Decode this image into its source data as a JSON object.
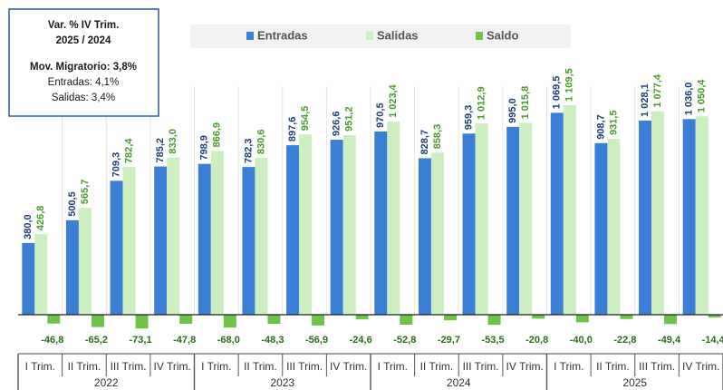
{
  "chart_data": {
    "type": "bar",
    "categories": [
      "I Trim.",
      "II Trim.",
      "III Trim.",
      "IV Trim.",
      "I Trim.",
      "II Trim.",
      "III Trim.",
      "IV Trim.",
      "I Trim.",
      "II Trim.",
      "III Trim.",
      "IV Trim.",
      "I Trim.",
      "II Trim.",
      "III Trim.",
      "IV Trim."
    ],
    "years": [
      "2022",
      "2023",
      "2024",
      "2025"
    ],
    "series": [
      {
        "name": "Entradas",
        "color": "#3a7fd5",
        "label_color": "#1f3e7a",
        "values": [
          380.0,
          500.5,
          709.3,
          785.2,
          798.9,
          782.3,
          897.6,
          926.6,
          970.5,
          828.7,
          959.3,
          995.0,
          1069.5,
          908.7,
          1028.1,
          1036.0
        ],
        "value_labels": [
          "380,0",
          "500,5",
          "709,3",
          "785,2",
          "798,9",
          "782,3",
          "897,6",
          "926,6",
          "970,5",
          "828,7",
          "959,3",
          "995,0",
          "1 069,5",
          "908,7",
          "1 028,1",
          "1 036,0"
        ]
      },
      {
        "name": "Salidas",
        "color": "#cdeec0",
        "label_color": "#4a9a2a",
        "values": [
          426.8,
          565.7,
          782.4,
          833.0,
          866.9,
          830.6,
          954.5,
          951.2,
          1023.4,
          858.3,
          1012.9,
          1015.8,
          1109.5,
          931.5,
          1077.4,
          1050.4
        ],
        "value_labels": [
          "426,8",
          "565,7",
          "782,4",
          "833,0",
          "866,9",
          "830,6",
          "954,5",
          "951,2",
          "1 023,4",
          "858,3",
          "1 012,9",
          "1 015,8",
          "1 109,5",
          "931,5",
          "1 077,4",
          "1 050,4"
        ]
      },
      {
        "name": "Saldo",
        "color": "#6ec24a",
        "label_color": "#2e6b1a",
        "values": [
          -46.8,
          -65.2,
          -73.1,
          -47.8,
          -68.0,
          -48.3,
          -56.9,
          -24.6,
          -52.8,
          -29.7,
          -53.5,
          -20.8,
          -40.0,
          -22.8,
          -49.4,
          -14.4
        ],
        "value_labels": [
          "-46,8",
          "-65,2",
          "-73,1",
          "-47,8",
          "-68,0",
          "-48,3",
          "-56,9",
          "-24,6",
          "-52,8",
          "-29,7",
          "-53,5",
          "-20,8",
          "-40,0",
          "-22,8",
          "-49,4",
          "-14,4"
        ]
      }
    ],
    "annotations": [
      "Var. % IV Trim.",
      "2025  / 2024",
      "Mov. Migratorio: 3,8%",
      "Entradas:  4,1%",
      "Salidas:  3,4%"
    ]
  }
}
